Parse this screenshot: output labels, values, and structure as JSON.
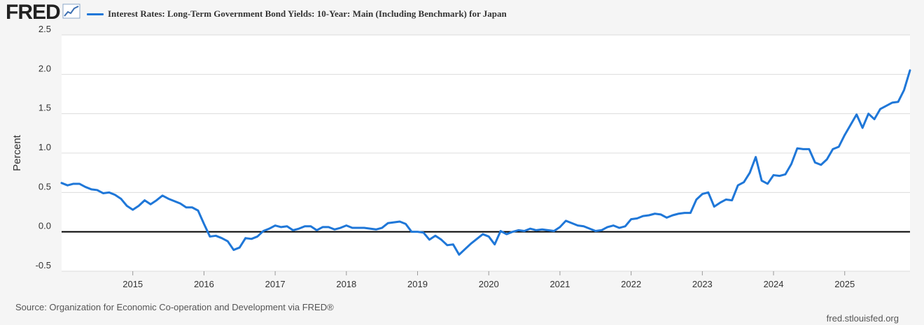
{
  "header": {
    "logo_text": "FRED",
    "logo_icon": "chart-line-icon",
    "legend_label": "Interest Rates: Long-Term Government Bond Yields: 10-Year: Main (Including Benchmark) for Japan",
    "legend_color": "#1f77d8"
  },
  "footer": {
    "source": "Source: Organization for Economic Co-operation and Development via FRED®",
    "site": "fred.stlouisfed.org"
  },
  "chart_data": {
    "type": "line",
    "title": "Interest Rates: Long-Term Government Bond Yields: 10-Year: Main (Including Benchmark) for Japan",
    "xlabel": "",
    "ylabel": "Percent",
    "ylim": [
      -0.5,
      2.5
    ],
    "yticks": [
      -0.5,
      0.0,
      0.5,
      1.0,
      1.5,
      2.0,
      2.5
    ],
    "ytick_labels": [
      "-0.5",
      "0.0",
      "0.5",
      "1.0",
      "1.5",
      "2.0",
      "2.5"
    ],
    "xlim": [
      2014.0,
      2025.917
    ],
    "xticks": [
      2015,
      2016,
      2017,
      2018,
      2019,
      2020,
      2021,
      2022,
      2023,
      2024,
      2025
    ],
    "xtick_labels": [
      "2015",
      "2016",
      "2017",
      "2018",
      "2019",
      "2020",
      "2021",
      "2022",
      "2023",
      "2024",
      "2025"
    ],
    "grid": true,
    "zero_line": true,
    "line_color": "#1f77d8",
    "series": [
      {
        "name": "Interest Rates: Long-Term Government Bond Yields: 10-Year: Main (Including Benchmark) for Japan",
        "start": "2014-01",
        "frequency": "monthly",
        "values": [
          0.62,
          0.59,
          0.61,
          0.61,
          0.57,
          0.54,
          0.53,
          0.49,
          0.5,
          0.47,
          0.42,
          0.33,
          0.28,
          0.33,
          0.4,
          0.35,
          0.4,
          0.46,
          0.42,
          0.39,
          0.36,
          0.31,
          0.31,
          0.27,
          0.1,
          -0.06,
          -0.05,
          -0.08,
          -0.12,
          -0.23,
          -0.2,
          -0.08,
          -0.09,
          -0.06,
          0.01,
          0.04,
          0.08,
          0.06,
          0.07,
          0.02,
          0.04,
          0.07,
          0.07,
          0.02,
          0.06,
          0.06,
          0.03,
          0.05,
          0.08,
          0.05,
          0.05,
          0.05,
          0.04,
          0.03,
          0.05,
          0.11,
          0.12,
          0.13,
          0.1,
          0.0,
          0.0,
          -0.01,
          -0.1,
          -0.05,
          -0.1,
          -0.17,
          -0.16,
          -0.29,
          -0.22,
          -0.15,
          -0.09,
          -0.03,
          -0.06,
          -0.16,
          0.01,
          -0.03,
          0.0,
          0.02,
          0.01,
          0.04,
          0.02,
          0.03,
          0.02,
          0.01,
          0.06,
          0.14,
          0.11,
          0.08,
          0.07,
          0.04,
          0.01,
          0.02,
          0.06,
          0.08,
          0.05,
          0.07,
          0.16,
          0.17,
          0.2,
          0.21,
          0.23,
          0.22,
          0.18,
          0.21,
          0.23,
          0.24,
          0.24,
          0.41,
          0.48,
          0.5,
          0.32,
          0.37,
          0.41,
          0.4,
          0.59,
          0.63,
          0.75,
          0.95,
          0.65,
          0.61,
          0.72,
          0.71,
          0.73,
          0.86,
          1.06,
          1.05,
          1.05,
          0.88,
          0.85,
          0.92,
          1.05,
          1.08,
          1.23,
          1.36,
          1.49,
          1.32,
          1.5,
          1.43,
          1.56,
          1.6,
          1.64,
          1.65,
          1.8,
          2.05
        ]
      }
    ]
  }
}
